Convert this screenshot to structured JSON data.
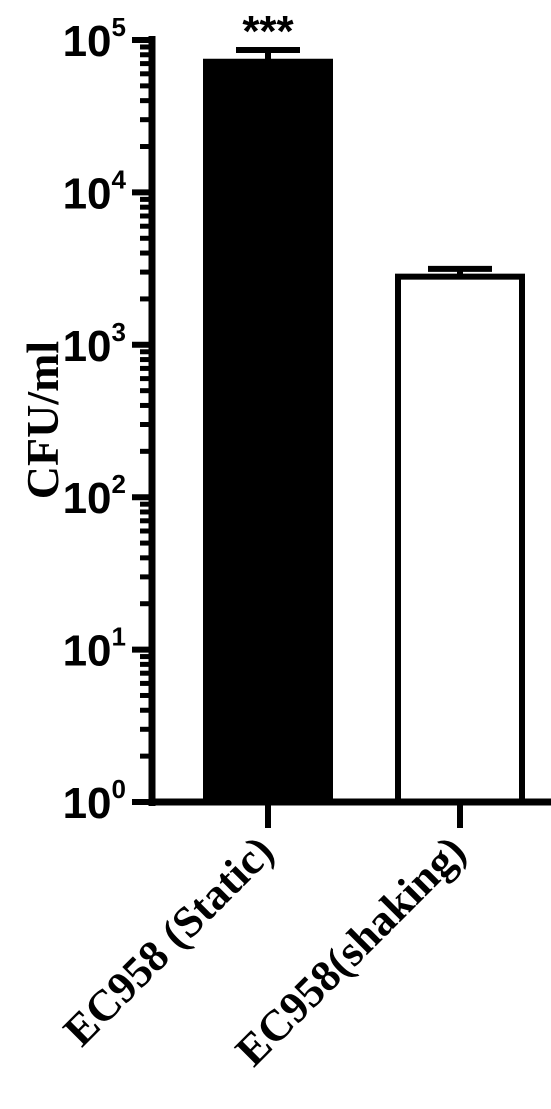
{
  "chart_data": {
    "type": "bar",
    "ylabel": "CFU/ml",
    "yscale": "log",
    "ylim": [
      1,
      100000
    ],
    "yticks": [
      {
        "base": "10",
        "exp": "0",
        "value": 1
      },
      {
        "base": "10",
        "exp": "1",
        "value": 10
      },
      {
        "base": "10",
        "exp": "2",
        "value": 100
      },
      {
        "base": "10",
        "exp": "3",
        "value": 1000
      },
      {
        "base": "10",
        "exp": "4",
        "value": 10000
      },
      {
        "base": "10",
        "exp": "5",
        "value": 100000
      }
    ],
    "categories": [
      "EC958 (Static)",
      "EC958(shaking)"
    ],
    "values": [
      72000,
      2800
    ],
    "error_upper": [
      86000,
      3150
    ],
    "bar_fills": [
      "#000000",
      "#ffffff"
    ],
    "annotations": [
      "***",
      ""
    ]
  }
}
